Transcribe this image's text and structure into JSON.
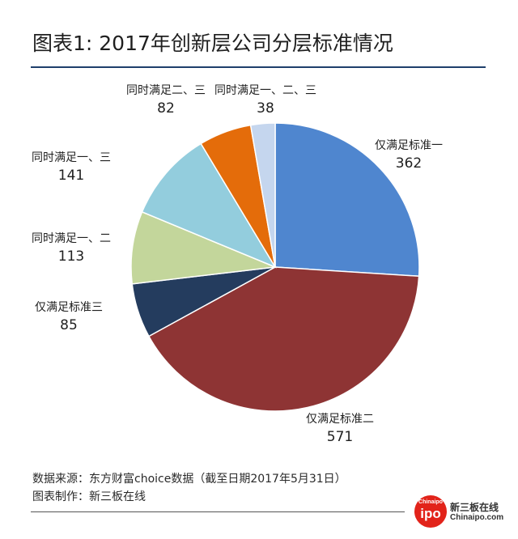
{
  "title": "图表1: 2017年创新层公司分层标准情况",
  "chart_data": {
    "type": "pie",
    "title": "图表1: 2017年创新层公司分层标准情况",
    "slices": [
      {
        "label": "仅满足标准一",
        "value": 362,
        "color": "#4f86cf"
      },
      {
        "label": "仅满足标准二",
        "value": 571,
        "color": "#8e3434"
      },
      {
        "label": "仅满足标准三",
        "value": 85,
        "color": "#243c5e"
      },
      {
        "label": "同时满足一、二",
        "value": 113,
        "color": "#c3d69b"
      },
      {
        "label": "同时满足一、三",
        "value": 141,
        "color": "#93cddd"
      },
      {
        "label": "同时满足二、三",
        "value": 82,
        "color": "#e46c0a"
      },
      {
        "label": "同时满足一、二、三",
        "value": 38,
        "color": "#c5d6ee"
      }
    ]
  },
  "notes": {
    "source": "数据来源：东方财富choice数据（截至日期2017年5月31日）",
    "producer": "图表制作：新三板在线"
  },
  "logo": {
    "badge_small": "Chinaipo",
    "badge_big": "ipo",
    "name_cn": "新三板在线",
    "name_en": "Chinaipo.com"
  }
}
